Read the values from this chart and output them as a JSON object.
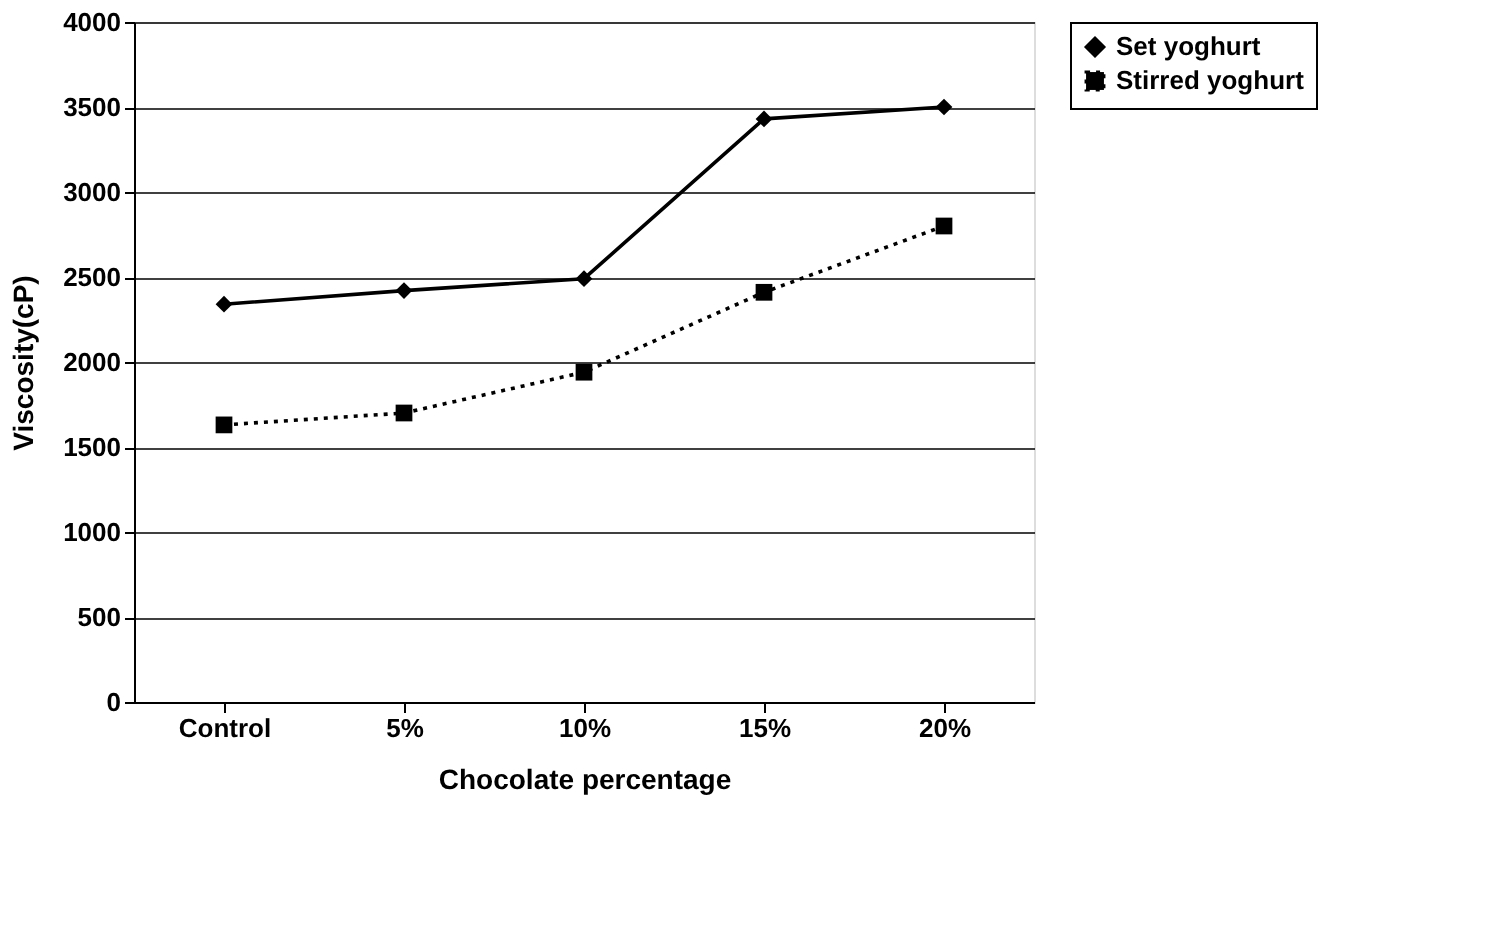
{
  "chart_data": {
    "type": "line",
    "xlabel": "Chocolate percentage",
    "ylabel": "Viscosity(cP)",
    "categories": [
      "Control",
      "5%",
      "10%",
      "15%",
      "20%"
    ],
    "series": [
      {
        "name": "Set yoghurt",
        "color": "#000000",
        "marker": "diamond",
        "line_style": "solid",
        "values": [
          2340,
          2420,
          2490,
          3430,
          3500
        ]
      },
      {
        "name": "Stirred yoghurt",
        "color": "#000000",
        "marker": "square",
        "line_style": "dotted",
        "values": [
          1630,
          1700,
          1940,
          2410,
          2800
        ]
      }
    ],
    "ylim": [
      0,
      4000
    ],
    "yticks": [
      0,
      500,
      1000,
      1500,
      2000,
      2500,
      3000,
      3500,
      4000
    ],
    "grid": "y",
    "legend": "right"
  }
}
